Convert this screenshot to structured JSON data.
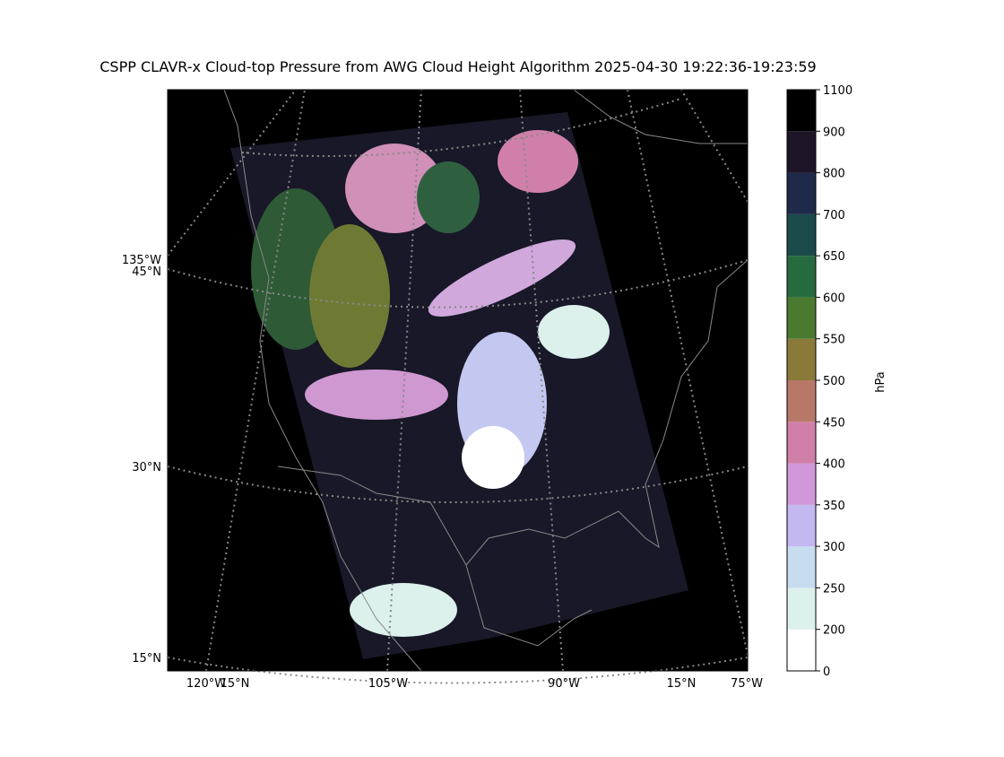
{
  "title": "CSPP CLAVR-x Cloud-top Pressure from AWG Cloud Height Algorithm 2025-04-30 19:22:36-19:23:59",
  "map": {
    "grid_labels": [
      "135°W",
      "45°N",
      "30°N",
      "15°N",
      "120°W",
      "15°N",
      "105°W",
      "90°W",
      "15°N",
      "75°W"
    ]
  },
  "colorbar": {
    "label": "hPa",
    "ticks": [
      0,
      200,
      250,
      300,
      350,
      400,
      450,
      500,
      550,
      600,
      650,
      700,
      800,
      900,
      1100
    ],
    "colors": [
      "#ffffff",
      "#dcf0ec",
      "#c8dcf0",
      "#c4b8f0",
      "#d098d8",
      "#d080a8",
      "#b87868",
      "#8a7a3a",
      "#4a7a30",
      "#266a40",
      "#1a4a4a",
      "#1f2a4a",
      "#1e1428",
      "#000000"
    ]
  }
}
